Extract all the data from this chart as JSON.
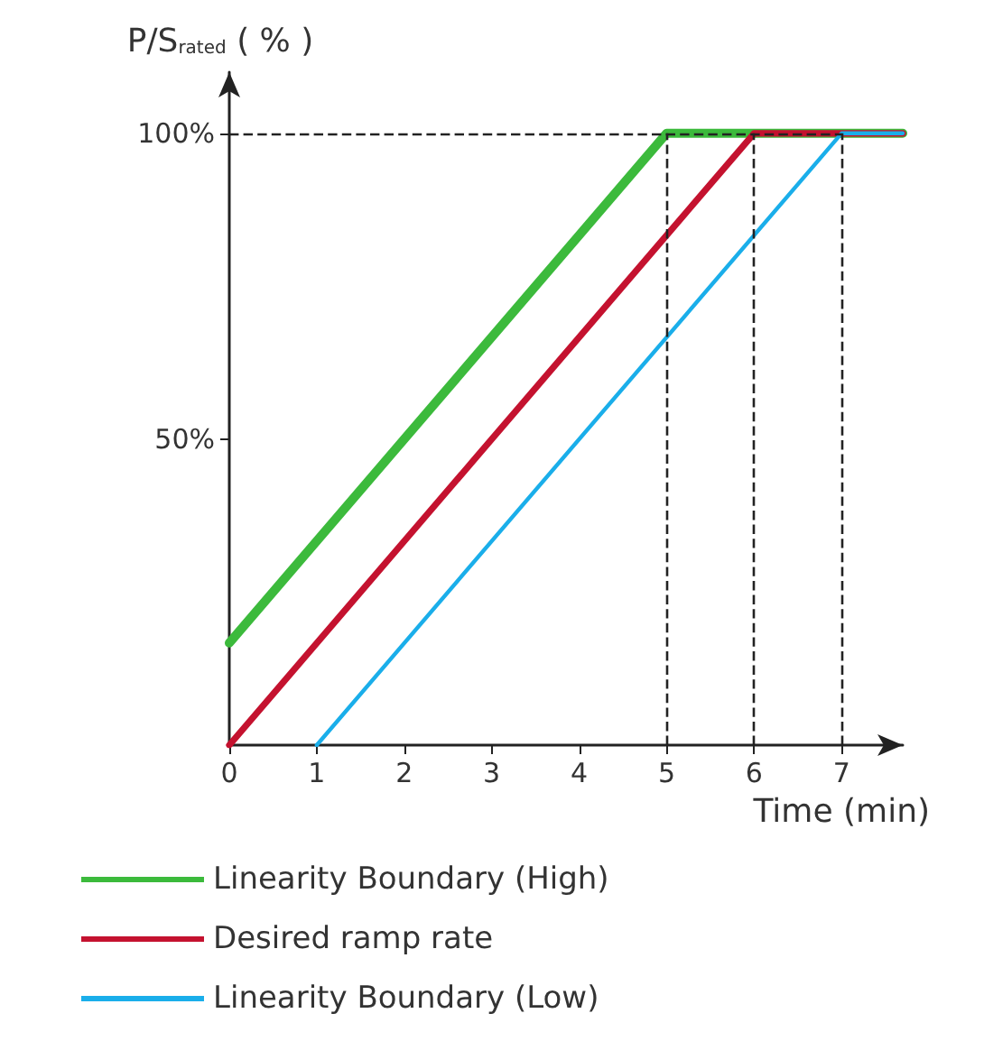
{
  "chart_data": {
    "type": "line",
    "xlabel": "Time (min)",
    "ylabel": "P/S$_{rated}$ ( % )",
    "xlim": [
      0,
      7.7
    ],
    "xticks": [
      0,
      1,
      2,
      3,
      4,
      5,
      6,
      7
    ],
    "ylim": [
      0,
      110
    ],
    "yticks": [
      {
        "value": 50,
        "label": "50%"
      },
      {
        "value": 100,
        "label": "100%"
      }
    ],
    "series": [
      {
        "name": "Linearity Boundary (High)",
        "color": "#3cba3c",
        "x": [
          0,
          5,
          7.7
        ],
        "values": [
          16.7,
          100,
          100
        ]
      },
      {
        "name": "Desired ramp rate",
        "color": "#c4122f",
        "x": [
          0,
          6,
          7.7
        ],
        "values": [
          0,
          100,
          100
        ]
      },
      {
        "name": "Linearity Boundary (Low)",
        "color": "#1aaeea",
        "x": [
          1,
          7,
          7.7
        ],
        "values": [
          0,
          100,
          100
        ]
      }
    ],
    "ref_lines": [
      {
        "axis": "y",
        "value": 100,
        "line_style": "dashed",
        "color": "#222222"
      },
      {
        "axis": "x",
        "value": 5,
        "line_style": "dashed",
        "color": "#222222"
      },
      {
        "axis": "x",
        "value": 6,
        "line_style": "dashed",
        "color": "#222222"
      },
      {
        "axis": "x",
        "value": 7,
        "line_style": "dashed",
        "color": "#222222"
      }
    ],
    "grid": false,
    "legend": "bottom",
    "marker": "none",
    "line_style": "solid"
  }
}
